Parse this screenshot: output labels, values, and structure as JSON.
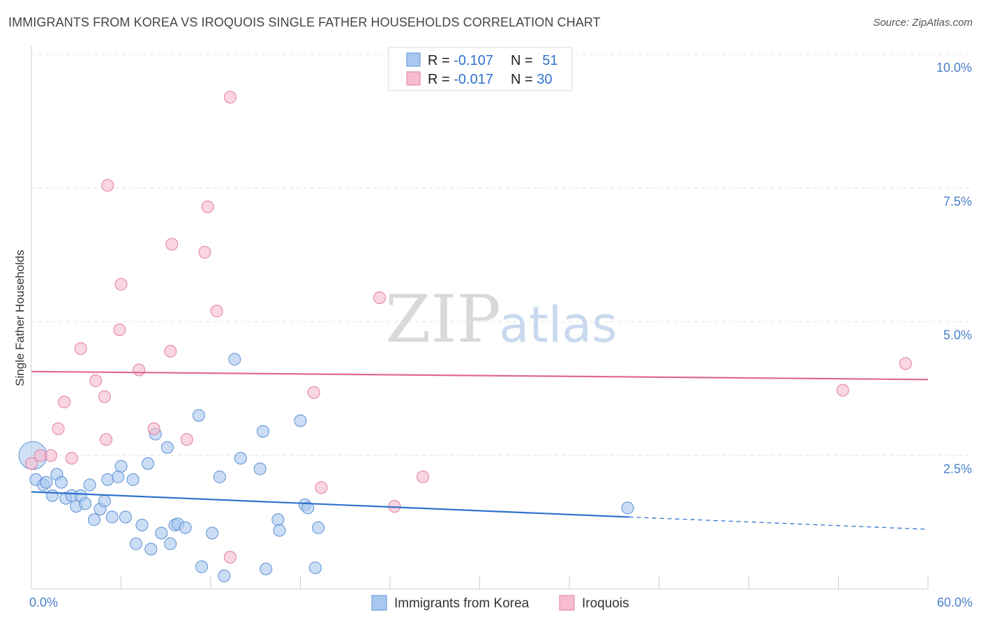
{
  "title": "IMMIGRANTS FROM KOREA VS IROQUOIS SINGLE FATHER HOUSEHOLDS CORRELATION CHART",
  "source": "Source: ZipAtlas.com",
  "watermark": {
    "zip": "ZIP",
    "atlas": "atlas"
  },
  "chart_data": {
    "type": "scatter",
    "ylabel": "Single Father Households",
    "xlabel": "",
    "xlim": [
      0,
      60
    ],
    "ylim": [
      0,
      10
    ],
    "x_tick_labels": [
      "0.0%",
      "60.0%"
    ],
    "y_ticks": [
      2.5,
      5.0,
      7.5,
      10.0
    ],
    "y_tick_labels": [
      "2.5%",
      "5.0%",
      "7.5%",
      "10.0%"
    ],
    "grid": true,
    "legend_top": [
      {
        "r_label": "R = ",
        "r_value": "-0.107",
        "n_label": "N = ",
        "n_value": "51"
      },
      {
        "r_label": "R = ",
        "r_value": "-0.017",
        "n_label": "N = ",
        "n_value": "30"
      }
    ],
    "series": [
      {
        "name": "Immigrants from Korea",
        "color": "#a9c8ef",
        "edge": "#5b8fd4",
        "line_color": "#2f72cc",
        "trend": {
          "x0": 0,
          "y0": 1.82,
          "x1": 40,
          "y1": 1.35,
          "dash_x1": 60,
          "dash_y1": 1.12
        },
        "points": [
          [
            0.1,
            2.5
          ],
          [
            0.3,
            2.05
          ],
          [
            0.8,
            1.95
          ],
          [
            1.0,
            2.0
          ],
          [
            1.4,
            1.75
          ],
          [
            1.7,
            2.15
          ],
          [
            2.0,
            2.0
          ],
          [
            2.3,
            1.7
          ],
          [
            2.7,
            1.75
          ],
          [
            3.0,
            1.55
          ],
          [
            3.3,
            1.75
          ],
          [
            3.6,
            1.6
          ],
          [
            3.9,
            1.95
          ],
          [
            4.2,
            1.3
          ],
          [
            4.6,
            1.5
          ],
          [
            4.9,
            1.65
          ],
          [
            5.1,
            2.05
          ],
          [
            5.4,
            1.35
          ],
          [
            5.8,
            2.1
          ],
          [
            6.0,
            2.3
          ],
          [
            6.3,
            1.35
          ],
          [
            6.8,
            2.05
          ],
          [
            7.0,
            0.85
          ],
          [
            7.4,
            1.2
          ],
          [
            7.8,
            2.35
          ],
          [
            8.0,
            0.75
          ],
          [
            8.3,
            2.9
          ],
          [
            8.7,
            1.05
          ],
          [
            9.1,
            2.65
          ],
          [
            9.3,
            0.85
          ],
          [
            9.6,
            1.2
          ],
          [
            9.8,
            1.22
          ],
          [
            10.3,
            1.15
          ],
          [
            11.2,
            3.25
          ],
          [
            11.4,
            0.42
          ],
          [
            12.1,
            1.05
          ],
          [
            12.6,
            2.1
          ],
          [
            12.9,
            0.25
          ],
          [
            13.6,
            4.3
          ],
          [
            14.0,
            2.45
          ],
          [
            15.3,
            2.25
          ],
          [
            15.5,
            2.95
          ],
          [
            15.7,
            0.38
          ],
          [
            16.5,
            1.3
          ],
          [
            16.6,
            1.1
          ],
          [
            18.0,
            3.15
          ],
          [
            18.3,
            1.58
          ],
          [
            18.5,
            1.52
          ],
          [
            19.0,
            0.4
          ],
          [
            19.2,
            1.15
          ],
          [
            39.9,
            1.52
          ]
        ]
      },
      {
        "name": "Iroquois",
        "color": "#f7bcd0",
        "edge": "#e27da0",
        "line_color": "#e06990",
        "trend": {
          "x0": 0,
          "y0": 4.07,
          "x1": 60,
          "y1": 3.92
        },
        "points": [
          [
            0.0,
            2.35
          ],
          [
            0.6,
            2.5
          ],
          [
            1.3,
            2.5
          ],
          [
            1.8,
            3.0
          ],
          [
            2.2,
            3.5
          ],
          [
            2.7,
            2.45
          ],
          [
            3.3,
            4.5
          ],
          [
            4.3,
            3.9
          ],
          [
            4.9,
            3.6
          ],
          [
            5.0,
            2.8
          ],
          [
            5.1,
            7.55
          ],
          [
            5.9,
            4.85
          ],
          [
            6.0,
            5.7
          ],
          [
            7.2,
            4.1
          ],
          [
            8.2,
            3.0
          ],
          [
            9.4,
            6.45
          ],
          [
            9.3,
            4.45
          ],
          [
            10.4,
            2.8
          ],
          [
            11.6,
            6.3
          ],
          [
            11.8,
            7.15
          ],
          [
            12.4,
            5.2
          ],
          [
            13.3,
            0.6
          ],
          [
            13.3,
            9.2
          ],
          [
            18.9,
            3.68
          ],
          [
            19.4,
            1.9
          ],
          [
            23.3,
            5.45
          ],
          [
            24.3,
            1.55
          ],
          [
            26.2,
            2.1
          ],
          [
            54.3,
            3.72
          ],
          [
            58.5,
            4.22
          ]
        ]
      }
    ]
  }
}
